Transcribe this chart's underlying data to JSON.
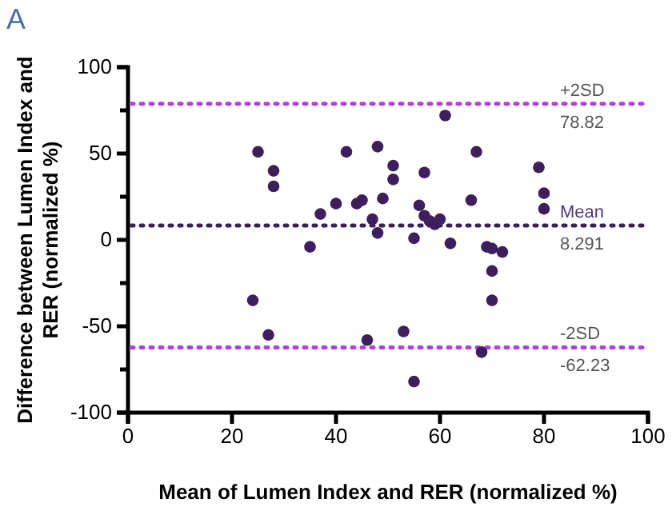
{
  "chart_data": {
    "type": "scatter",
    "title": "A",
    "xlabel": "Mean of Lumen Index and RER (normalized %)",
    "ylabel": "Difference between Lumen Index and RER (normalized %)",
    "xlim": [
      0,
      100
    ],
    "xticks": [
      0,
      20,
      40,
      60,
      80,
      100
    ],
    "ylim": [
      -100,
      100
    ],
    "yticks": [
      -100,
      {
        "value": -75,
        "label": null
      },
      -50,
      {
        "value": -25,
        "label": null
      },
      0,
      {
        "value": 25,
        "label": null
      },
      50,
      {
        "value": 75,
        "label": null
      },
      100
    ],
    "grid": false,
    "marker": "circle",
    "series": [
      {
        "color": "#3d1f5e",
        "x": [
          25,
          28,
          28,
          24,
          27,
          35,
          37,
          40,
          42,
          44,
          45,
          46,
          48,
          47,
          48,
          49,
          51,
          51,
          53,
          55,
          55,
          57,
          56,
          57,
          58,
          59,
          60,
          61,
          62,
          66,
          67,
          68,
          69,
          70,
          72,
          70,
          70,
          79,
          80,
          80
        ],
        "values": [
          51,
          40,
          31,
          -35,
          -55,
          -4,
          15,
          21,
          51,
          21,
          23,
          -58,
          54,
          12,
          4,
          24,
          43,
          35,
          -53,
          1,
          -82,
          39,
          20,
          14,
          11,
          9,
          12,
          72,
          -2,
          23,
          51,
          -65,
          -4,
          -5,
          -7,
          -18,
          -35,
          42,
          27,
          18
        ]
      }
    ],
    "ref_lines": [
      {
        "axis": "y",
        "value": 78.82,
        "label": "+2SD",
        "color": "#b040e0",
        "line_style": "dotted"
      },
      {
        "axis": "y",
        "value": 8.291,
        "label": "Mean",
        "color": "#3d1f5e",
        "line_style": "dotted"
      },
      {
        "axis": "y",
        "value": -62.23,
        "label": "-2SD",
        "color": "#b040e0",
        "line_style": "dotted"
      }
    ],
    "annotations": [
      {
        "text": "78.82",
        "y": 78.82
      },
      {
        "text": "8.291",
        "y": 8.291
      },
      {
        "text": "-62.23",
        "y": -62.23
      }
    ]
  }
}
